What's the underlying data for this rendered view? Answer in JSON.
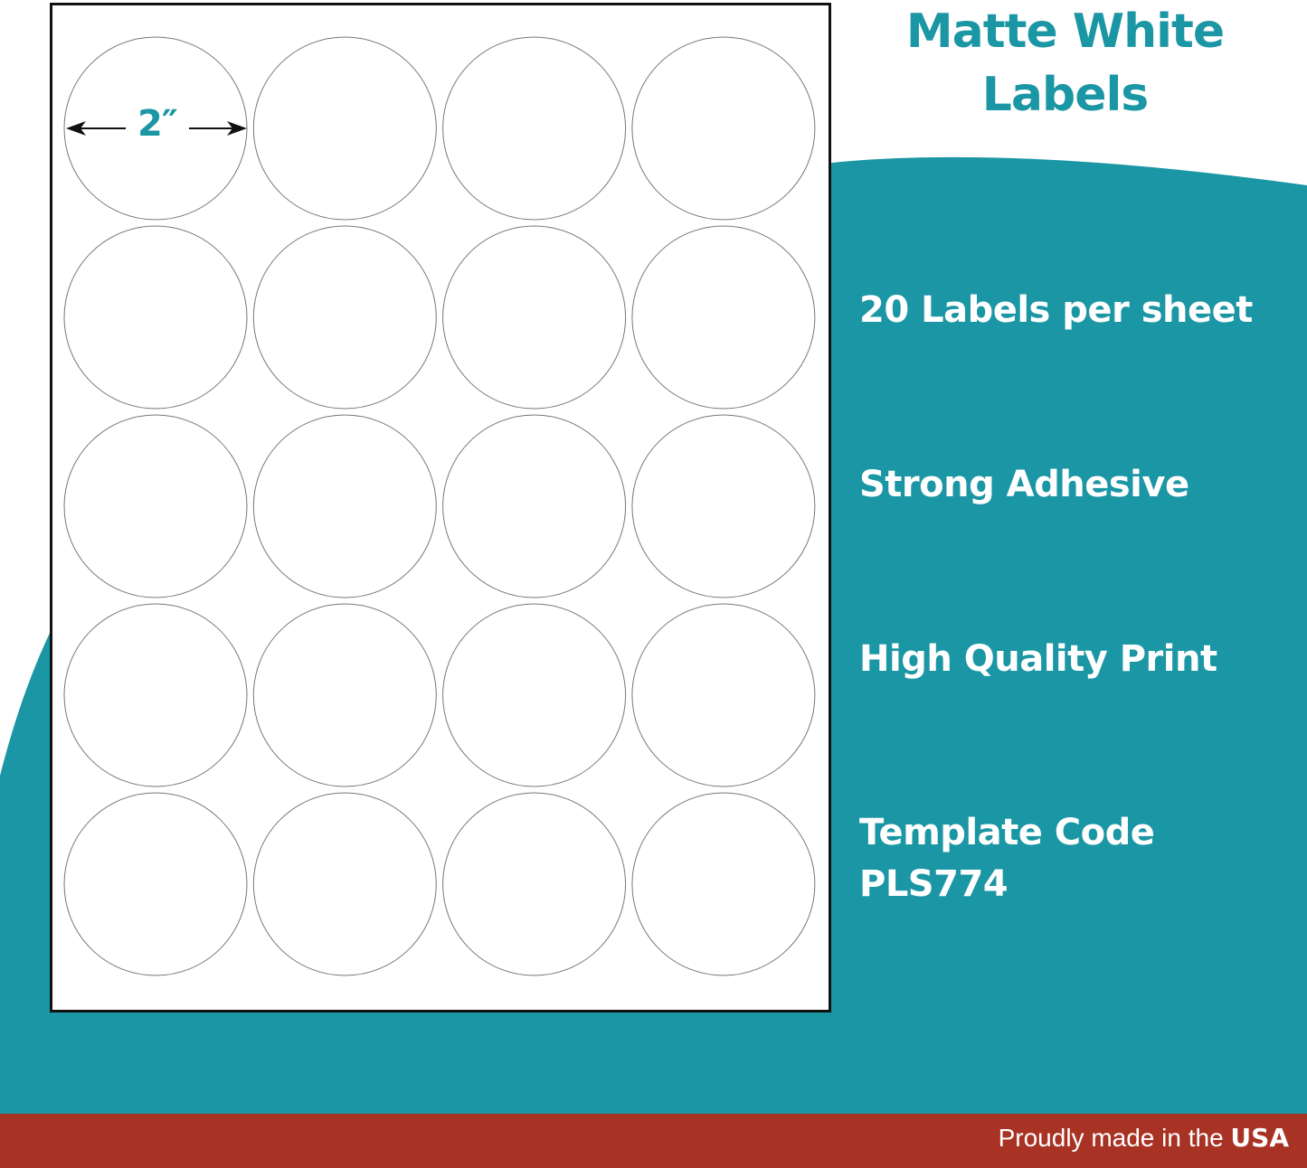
{
  "colors": {
    "teal": "#1b96a4",
    "red": "#a83224",
    "sheet_border": "#111111"
  },
  "title": {
    "line1": "Matte White",
    "line2": "Labels"
  },
  "dimension_label": "2″",
  "sheet": {
    "rows": 5,
    "columns": 4
  },
  "features": [
    "20 Labels per sheet",
    "Strong Adhesive",
    "High Quality Print",
    "Template Code",
    "PLS774"
  ],
  "footer": {
    "text": "Proudly made in the ",
    "emphasis": "USA"
  }
}
